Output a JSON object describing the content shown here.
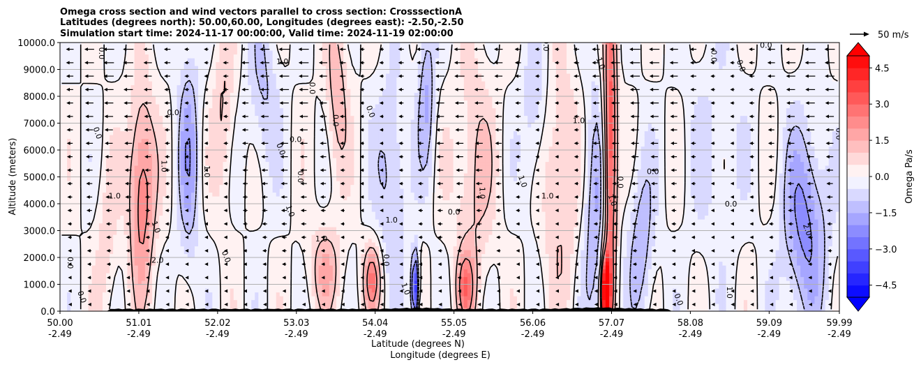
{
  "chart_data": {
    "type": "heatmap",
    "title_lines": [
      "Omega cross section and wind vectors parallel to cross section: CrosssectionA",
      "Latitudes (degrees north): 50.00,60.00, Longitudes (degrees east): -2.50,-2.50",
      "Simulation start time: 2024-11-17 00:00:00, Valid time: 2024-11-19 02:00:00"
    ],
    "xlabel_lines": [
      "Latitude (degrees N)",
      "Longitude (degrees E)"
    ],
    "ylabel": "Altitude (meters)",
    "xlim": [
      50.0,
      59.99
    ],
    "ylim": [
      0,
      10000
    ],
    "x_ticks": [
      {
        "lat": "50.00",
        "lon": "-2.49",
        "value": 50.0
      },
      {
        "lat": "51.01",
        "lon": "-2.49",
        "value": 51.01
      },
      {
        "lat": "52.02",
        "lon": "-2.49",
        "value": 52.02
      },
      {
        "lat": "53.03",
        "lon": "-2.49",
        "value": 53.03
      },
      {
        "lat": "54.04",
        "lon": "-2.49",
        "value": 54.04
      },
      {
        "lat": "55.05",
        "lon": "-2.49",
        "value": 55.05
      },
      {
        "lat": "56.06",
        "lon": "-2.49",
        "value": 56.06
      },
      {
        "lat": "57.07",
        "lon": "-2.49",
        "value": 57.07
      },
      {
        "lat": "58.08",
        "lon": "-2.49",
        "value": 58.08
      },
      {
        "lat": "59.09",
        "lon": "-2.49",
        "value": 59.09
      },
      {
        "lat": "59.99",
        "lon": "-2.49",
        "value": 59.99
      }
    ],
    "y_ticks": [
      {
        "label": "0.0",
        "value": 0
      },
      {
        "label": "1000.0",
        "value": 1000
      },
      {
        "label": "2000.0",
        "value": 2000
      },
      {
        "label": "3000.0",
        "value": 3000
      },
      {
        "label": "4000.0",
        "value": 4000
      },
      {
        "label": "5000.0",
        "value": 5000
      },
      {
        "label": "6000.0",
        "value": 6000
      },
      {
        "label": "7000.0",
        "value": 7000
      },
      {
        "label": "8000.0",
        "value": 8000
      },
      {
        "label": "9000.0",
        "value": 9000
      },
      {
        "label": "10000.0",
        "value": 10000
      }
    ],
    "grid": true,
    "colorbar": {
      "label": "Omega Pa/s",
      "range": [
        -5.0,
        5.0
      ],
      "extend": "both",
      "low_color": "#0000ff",
      "high_color": "#ff0000",
      "mid_color": "#ffffff",
      "ticks": [
        {
          "label": "4.5",
          "value": 4.5
        },
        {
          "label": "3.0",
          "value": 3.0
        },
        {
          "label": "1.5",
          "value": 1.5
        },
        {
          "label": "0.0",
          "value": 0.0
        },
        {
          "label": "−1.5",
          "value": -1.5
        },
        {
          "label": "−3.0",
          "value": -3.0
        },
        {
          "label": "−4.5",
          "value": -4.5
        }
      ]
    },
    "quiver_key": {
      "label": "50 m/s",
      "speed": 50
    },
    "contour_levels": [
      -2.0,
      -1.0,
      0.0,
      1.0,
      2.0
    ],
    "contour_labels": [
      {
        "text": "0.0",
        "lat": 50.5,
        "alt": 9600
      },
      {
        "text": "0.0",
        "lat": 50.45,
        "alt": 6600
      },
      {
        "text": "1.0",
        "lat": 50.7,
        "alt": 4200
      },
      {
        "text": "0.0",
        "lat": 50.1,
        "alt": 1800
      },
      {
        "text": "0.0",
        "lat": 50.25,
        "alt": 500
      },
      {
        "text": "0.0",
        "lat": 51.45,
        "alt": 7300
      },
      {
        "text": "1.0",
        "lat": 51.3,
        "alt": 5400
      },
      {
        "text": "1.0",
        "lat": 51.2,
        "alt": 3100
      },
      {
        "text": "2.0",
        "lat": 51.25,
        "alt": 1800
      },
      {
        "text": "1.0",
        "lat": 51.85,
        "alt": 5200
      },
      {
        "text": "0.0",
        "lat": 52.1,
        "alt": 2000
      },
      {
        "text": "1.0",
        "lat": 52.85,
        "alt": 9200
      },
      {
        "text": "0.0",
        "lat": 53.2,
        "alt": 8300
      },
      {
        "text": "0.0",
        "lat": 52.8,
        "alt": 6000
      },
      {
        "text": "0.0",
        "lat": 53.02,
        "alt": 6300
      },
      {
        "text": "0.0",
        "lat": 53.05,
        "alt": 5000
      },
      {
        "text": "1.0",
        "lat": 52.92,
        "alt": 3700
      },
      {
        "text": "1.0",
        "lat": 53.35,
        "alt": 2600
      },
      {
        "text": "0.0",
        "lat": 53.5,
        "alt": 7100
      },
      {
        "text": "0.0",
        "lat": 53.95,
        "alt": 7400
      },
      {
        "text": "1.0",
        "lat": 54.25,
        "alt": 3300
      },
      {
        "text": "0.0",
        "lat": 54.15,
        "alt": 1900
      },
      {
        "text": "1.0",
        "lat": 54.4,
        "alt": 800
      },
      {
        "text": "0.0",
        "lat": 55.05,
        "alt": 3600
      },
      {
        "text": "1.0",
        "lat": 55.38,
        "alt": 4400
      },
      {
        "text": "1.0",
        "lat": 55.9,
        "alt": 4800
      },
      {
        "text": "1.0",
        "lat": 56.25,
        "alt": 4200
      },
      {
        "text": "0.0",
        "lat": 56.2,
        "alt": 9900
      },
      {
        "text": "1.0",
        "lat": 56.9,
        "alt": 9200
      },
      {
        "text": "1.0",
        "lat": 56.65,
        "alt": 7000
      },
      {
        "text": "0.0",
        "lat": 57.15,
        "alt": 4800
      },
      {
        "text": "1.0",
        "lat": 57.05,
        "alt": 4100
      },
      {
        "text": "0.0",
        "lat": 57.6,
        "alt": 5100
      },
      {
        "text": "0.0",
        "lat": 58.35,
        "alt": 9500
      },
      {
        "text": "0.0",
        "lat": 58.7,
        "alt": 9100
      },
      {
        "text": "0.0",
        "lat": 59.05,
        "alt": 9800
      },
      {
        "text": "0.0",
        "lat": 59.95,
        "alt": 6600
      },
      {
        "text": "2.0",
        "lat": 59.55,
        "alt": 3000
      },
      {
        "text": "0.0",
        "lat": 58.6,
        "alt": 3900
      },
      {
        "text": "1.0",
        "lat": 58.55,
        "alt": 700
      },
      {
        "text": "0.0",
        "lat": 57.9,
        "alt": 400
      }
    ]
  }
}
